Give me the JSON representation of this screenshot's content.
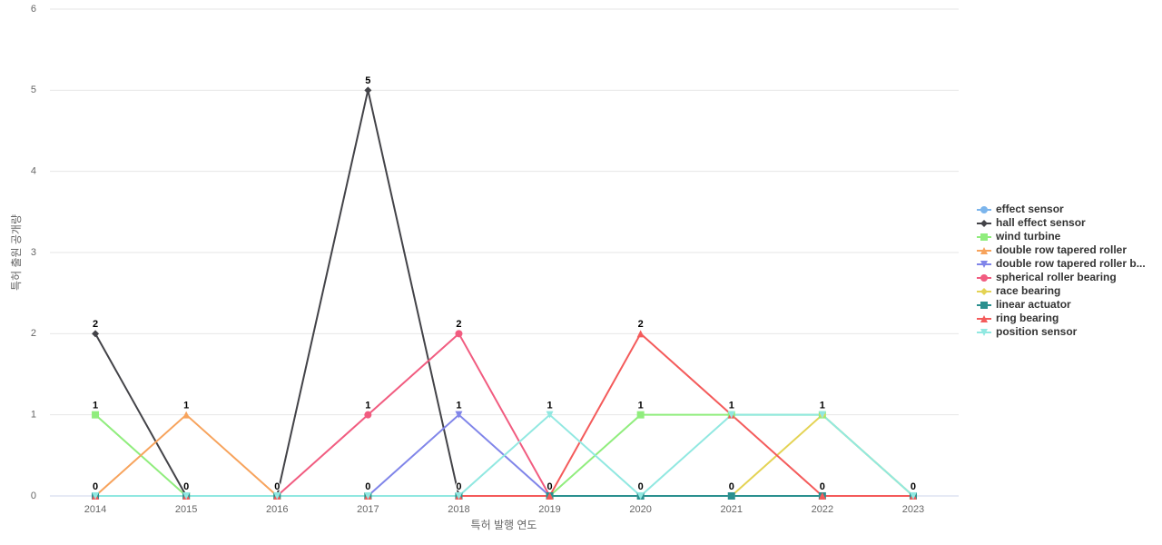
{
  "chart_data": {
    "type": "line",
    "x_label": "특허 발행 연도",
    "y_label": "특허 출원 공개량",
    "categories": [
      "2014",
      "2015",
      "2016",
      "2017",
      "2018",
      "2019",
      "2020",
      "2021",
      "2022",
      "2023"
    ],
    "ylim": [
      0,
      6
    ],
    "yticks": [
      0,
      1,
      2,
      3,
      4,
      5,
      6
    ],
    "grid": true,
    "legend": "right",
    "series": [
      {
        "name": "effect sensor",
        "color": "#7cb5ec",
        "marker": "circle",
        "values": [
          0,
          0,
          0,
          0,
          0,
          0,
          0,
          0,
          0,
          0
        ]
      },
      {
        "name": "hall effect sensor",
        "color": "#434348",
        "marker": "diamond",
        "values": [
          2,
          0,
          0,
          5,
          0,
          0,
          0,
          0,
          0,
          0
        ]
      },
      {
        "name": "wind turbine",
        "color": "#90ed7d",
        "marker": "square",
        "values": [
          1,
          0,
          0,
          0,
          0,
          0,
          1,
          1,
          1,
          0
        ]
      },
      {
        "name": "double row tapered roller",
        "color": "#f7a35c",
        "marker": "triangle",
        "values": [
          0,
          1,
          0,
          0,
          0,
          0,
          0,
          0,
          0,
          0
        ]
      },
      {
        "name": "double row tapered roller b...",
        "color": "#8085e9",
        "marker": "triangle-down",
        "values": [
          0,
          0,
          0,
          0,
          1,
          0,
          0,
          0,
          0,
          0
        ]
      },
      {
        "name": "spherical roller bearing",
        "color": "#f15c80",
        "marker": "circle",
        "values": [
          0,
          0,
          0,
          1,
          2,
          0,
          0,
          0,
          0,
          0
        ]
      },
      {
        "name": "race bearing",
        "color": "#e4d354",
        "marker": "diamond",
        "values": [
          0,
          0,
          0,
          0,
          0,
          0,
          0,
          0,
          1,
          0
        ]
      },
      {
        "name": "linear actuator",
        "color": "#2b908f",
        "marker": "square",
        "values": [
          0,
          0,
          0,
          0,
          0,
          0,
          0,
          0,
          0,
          0
        ]
      },
      {
        "name": "ring bearing",
        "color": "#f45b5b",
        "marker": "triangle",
        "values": [
          0,
          0,
          0,
          0,
          0,
          0,
          2,
          1,
          0,
          0
        ]
      },
      {
        "name": "position sensor",
        "color": "#91e8e1",
        "marker": "triangle-down",
        "values": [
          0,
          0,
          0,
          0,
          0,
          1,
          0,
          1,
          1,
          0
        ]
      }
    ]
  }
}
